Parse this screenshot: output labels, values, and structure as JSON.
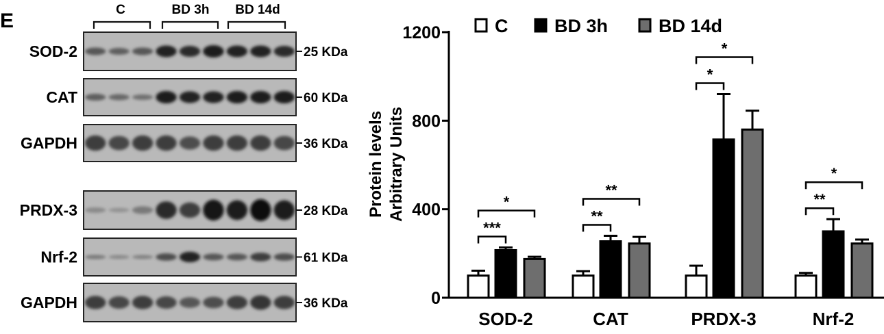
{
  "panel_label": "E",
  "blot": {
    "groups": [
      "C",
      "BD 3h",
      "BD 14d"
    ],
    "rows": [
      {
        "protein": "SOD-2",
        "size": "25 KDa"
      },
      {
        "protein": "CAT",
        "size": "60 KDa"
      },
      {
        "protein": "GAPDH",
        "size": "36 KDa"
      },
      {
        "protein": "PRDX-3",
        "size": "28 KDa"
      },
      {
        "protein": "Nrf-2",
        "size": "61 KDa"
      },
      {
        "protein": "GAPDH",
        "size": "36 KDa"
      }
    ]
  },
  "chart_data": {
    "type": "bar",
    "title": "",
    "xlabel": "",
    "ylabel": [
      "Protein levels",
      "Arbitrary Units"
    ],
    "ylim": [
      0,
      1200
    ],
    "yticks": [
      0,
      400,
      800,
      1200
    ],
    "categories": [
      "SOD-2",
      "CAT",
      "PRDX-3",
      "Nrf-2"
    ],
    "legend_position": "top",
    "series": [
      {
        "name": "C",
        "color": "#ffffff",
        "values": [
          100,
          100,
          100,
          100
        ],
        "errors": [
          22,
          20,
          45,
          12
        ]
      },
      {
        "name": "BD 3h",
        "color": "#000000",
        "values": [
          215,
          255,
          715,
          300
        ],
        "errors": [
          12,
          25,
          205,
          55
        ]
      },
      {
        "name": "BD 14d",
        "color": "#6e6e6e",
        "values": [
          175,
          245,
          760,
          245
        ],
        "errors": [
          10,
          30,
          85,
          18
        ]
      }
    ],
    "significance": [
      {
        "category": 0,
        "from": 0,
        "to": 1,
        "label": "***",
        "level": 1
      },
      {
        "category": 0,
        "from": 0,
        "to": 2,
        "label": "*",
        "level": 2
      },
      {
        "category": 1,
        "from": 0,
        "to": 1,
        "label": "**",
        "level": 1
      },
      {
        "category": 1,
        "from": 0,
        "to": 2,
        "label": "**",
        "level": 2
      },
      {
        "category": 2,
        "from": 0,
        "to": 1,
        "label": "*",
        "level": 1
      },
      {
        "category": 2,
        "from": 0,
        "to": 2,
        "label": "*",
        "level": 2
      },
      {
        "category": 3,
        "from": 0,
        "to": 1,
        "label": "**",
        "level": 1
      },
      {
        "category": 3,
        "from": 0,
        "to": 2,
        "label": "*",
        "level": 2
      }
    ]
  }
}
